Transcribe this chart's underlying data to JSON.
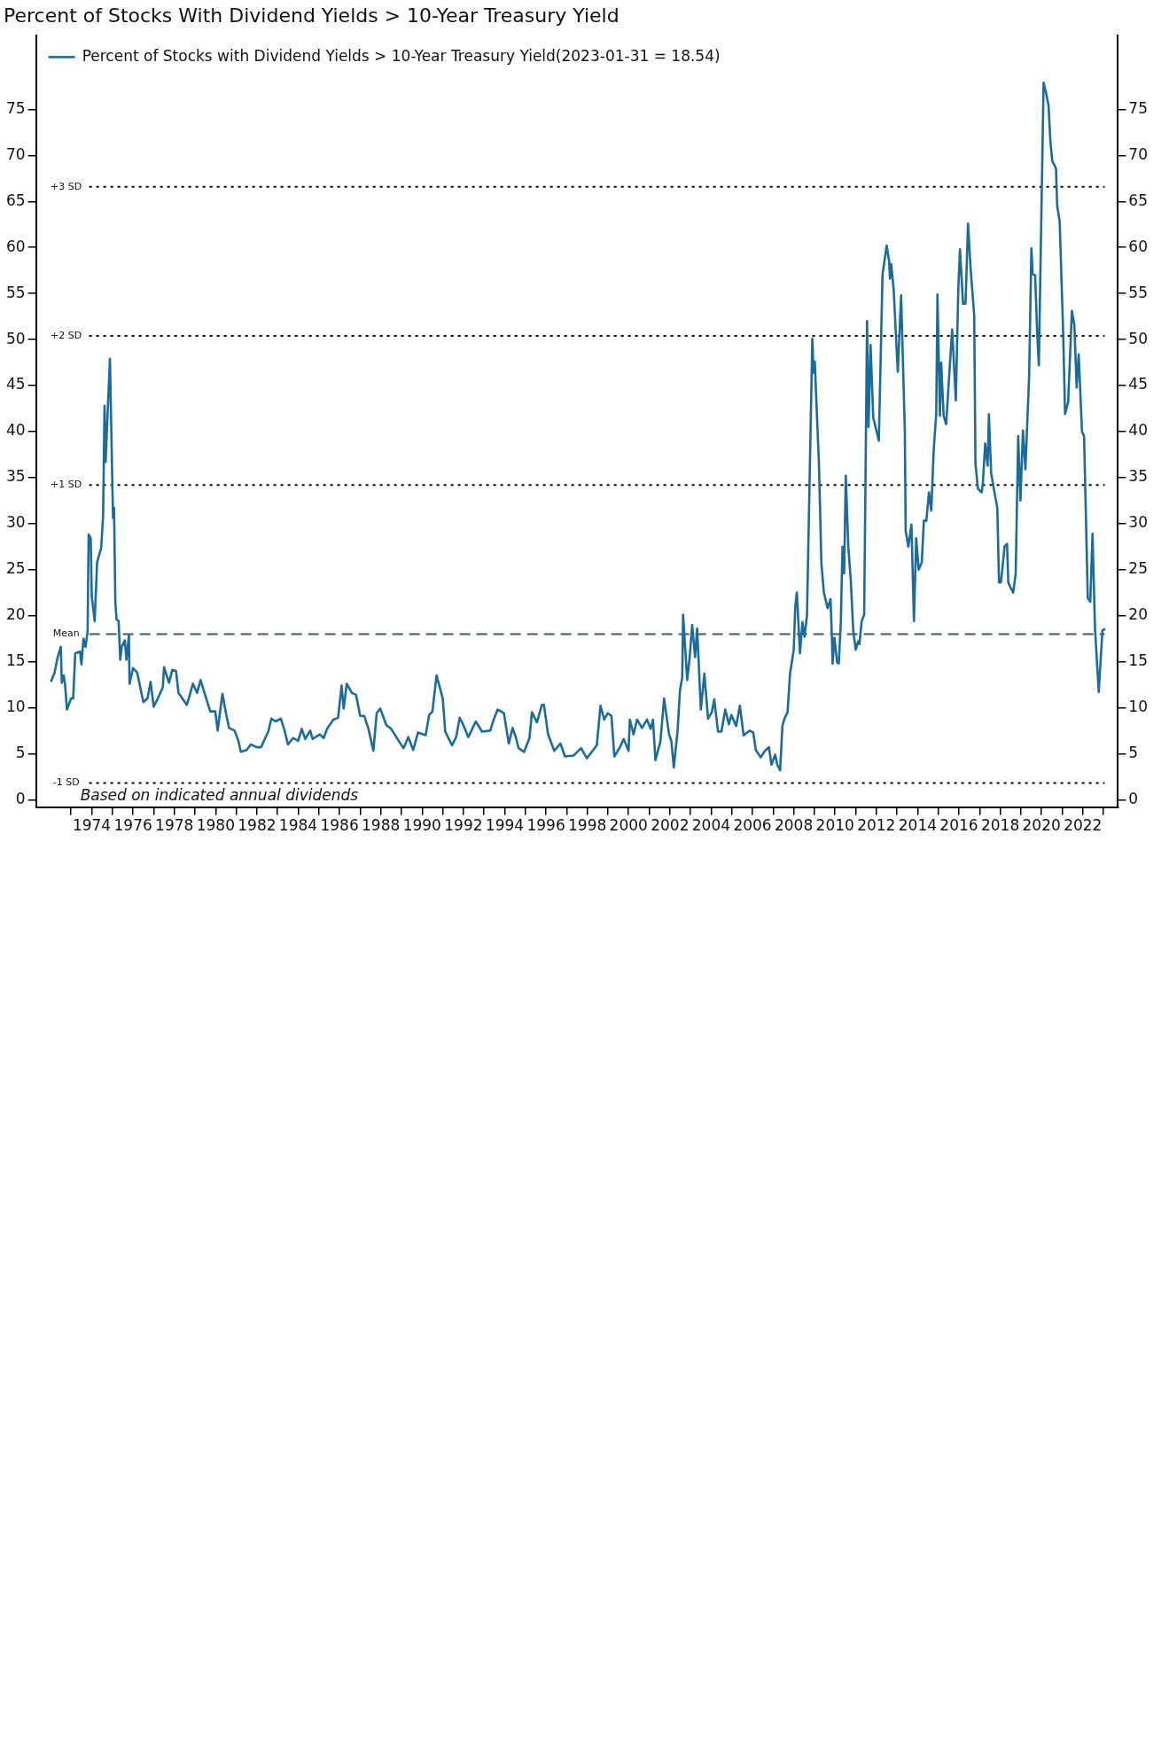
{
  "chart_data": {
    "type": "line",
    "title": "Percent of Stocks With Dividend Yields > 10-Year Treasury Yield",
    "x": [
      1972.02,
      1972.2,
      1972.34,
      1972.5,
      1972.55,
      1972.64,
      1972.7,
      1972.8,
      1973.0,
      1973.1,
      1973.2,
      1973.43,
      1973.5,
      1973.6,
      1973.7,
      1973.8,
      1973.85,
      1973.95,
      1974.0,
      1974.14,
      1974.26,
      1974.46,
      1974.55,
      1974.62,
      1974.67,
      1974.88,
      1975.03,
      1975.08,
      1975.14,
      1975.2,
      1975.3,
      1975.38,
      1975.45,
      1975.6,
      1975.68,
      1975.8,
      1975.83,
      1976.0,
      1976.2,
      1976.5,
      1976.7,
      1976.85,
      1977.0,
      1977.2,
      1977.44,
      1977.5,
      1977.74,
      1977.9,
      1978.08,
      1978.2,
      1978.6,
      1978.7,
      1978.9,
      1979.1,
      1979.27,
      1979.57,
      1979.74,
      1979.98,
      1980.1,
      1980.2,
      1980.33,
      1980.5,
      1980.65,
      1980.92,
      1981.1,
      1981.22,
      1981.5,
      1981.7,
      1982.0,
      1982.2,
      1982.4,
      1982.55,
      1982.7,
      1982.9,
      1983.16,
      1983.34,
      1983.5,
      1983.75,
      1984.0,
      1984.17,
      1984.34,
      1984.58,
      1984.7,
      1985.05,
      1985.23,
      1985.4,
      1985.7,
      1985.93,
      1986.1,
      1986.2,
      1986.35,
      1986.6,
      1986.8,
      1987.0,
      1987.2,
      1987.4,
      1987.64,
      1987.8,
      1987.97,
      1988.27,
      1988.5,
      1988.75,
      1989.1,
      1989.33,
      1989.57,
      1989.8,
      1990.17,
      1990.34,
      1990.5,
      1990.7,
      1991.0,
      1991.12,
      1991.45,
      1991.65,
      1991.82,
      1992.0,
      1992.24,
      1992.6,
      1992.9,
      1993.3,
      1993.48,
      1993.66,
      1993.96,
      1994.2,
      1994.38,
      1994.55,
      1994.67,
      1994.94,
      1995.2,
      1995.32,
      1995.56,
      1995.8,
      1995.9,
      1996.1,
      1996.4,
      1996.7,
      1996.92,
      1997.34,
      1997.7,
      1997.98,
      1998.22,
      1998.46,
      1998.64,
      1998.82,
      1998.99,
      1999.17,
      1999.31,
      1999.58,
      1999.76,
      2000.0,
      2000.06,
      2000.24,
      2000.41,
      2000.65,
      2000.89,
      2001.07,
      2001.18,
      2001.3,
      2001.54,
      2001.72,
      2001.96,
      2002.07,
      2002.19,
      2002.37,
      2002.49,
      2002.6,
      2002.64,
      2002.84,
      2002.96,
      2003.08,
      2003.22,
      2003.32,
      2003.5,
      2003.67,
      2003.85,
      2004.03,
      2004.15,
      2004.33,
      2004.5,
      2004.68,
      2004.86,
      2004.98,
      2005.21,
      2005.39,
      2005.57,
      2005.86,
      2006.04,
      2006.16,
      2006.4,
      2006.6,
      2006.8,
      2006.92,
      2007.1,
      2007.2,
      2007.34,
      2007.45,
      2007.55,
      2007.7,
      2007.82,
      2008.0,
      2008.07,
      2008.15,
      2008.3,
      2008.42,
      2008.52,
      2008.64,
      2008.9,
      2008.96,
      2009.02,
      2009.08,
      2009.22,
      2009.34,
      2009.46,
      2009.64,
      2009.78,
      2009.85,
      2009.88,
      2009.97,
      2010.1,
      2010.18,
      2010.28,
      2010.36,
      2010.44,
      2010.52,
      2010.64,
      2010.76,
      2010.88,
      2011.0,
      2011.12,
      2011.18,
      2011.29,
      2011.41,
      2011.55,
      2011.62,
      2011.72,
      2011.85,
      2012.12,
      2012.3,
      2012.5,
      2012.62,
      2012.66,
      2012.72,
      2012.84,
      2012.98,
      2013.04,
      2013.2,
      2013.38,
      2013.42,
      2013.55,
      2013.7,
      2013.82,
      2013.93,
      2014.05,
      2014.2,
      2014.3,
      2014.42,
      2014.55,
      2014.66,
      2014.78,
      2014.9,
      2014.96,
      2015.08,
      2015.14,
      2015.26,
      2015.38,
      2015.67,
      2015.85,
      2015.97,
      2016.05,
      2016.2,
      2016.32,
      2016.44,
      2016.56,
      2016.74,
      2016.8,
      2016.92,
      2017.1,
      2017.16,
      2017.27,
      2017.39,
      2017.45,
      2017.56,
      2017.68,
      2017.86,
      2017.94,
      2018.03,
      2018.1,
      2018.21,
      2018.33,
      2018.39,
      2018.51,
      2018.63,
      2018.75,
      2018.87,
      2018.98,
      2019.1,
      2019.22,
      2019.4,
      2019.51,
      2019.57,
      2019.69,
      2019.79,
      2019.87,
      2020.1,
      2020.22,
      2020.34,
      2020.43,
      2020.52,
      2020.7,
      2020.76,
      2020.88,
      2021.05,
      2021.14,
      2021.29,
      2021.47,
      2021.59,
      2021.7,
      2021.8,
      2021.96,
      2022.06,
      2022.24,
      2022.36,
      2022.47,
      2022.59,
      2022.77,
      2022.95,
      2023.08
    ],
    "series": [
      {
        "name": "Percent of Stocks with Dividend Yields > 10-Year Treasury Yield(2023-01-31 = 18.54)",
        "color": "#1b6b9b",
        "values": [
          12.8,
          13.8,
          15.4,
          16.6,
          12.7,
          13.5,
          12.7,
          9.8,
          11.0,
          11.0,
          15.9,
          16.1,
          14.7,
          17.5,
          16.6,
          18.3,
          28.8,
          28.4,
          22.1,
          19.4,
          25.8,
          27.4,
          30.9,
          42.8,
          36.7,
          47.9,
          30.6,
          31.7,
          21.6,
          19.6,
          19.4,
          15.2,
          16.6,
          17.3,
          15.2,
          17.9,
          12.6,
          14.3,
          13.8,
          10.6,
          11.0,
          12.8,
          10.1,
          11.0,
          12.2,
          14.4,
          12.7,
          14.1,
          14.0,
          11.6,
          10.3,
          11.0,
          12.6,
          11.6,
          13.0,
          10.8,
          9.6,
          9.6,
          7.5,
          9.3,
          11.5,
          9.4,
          7.8,
          7.5,
          6.4,
          5.2,
          5.4,
          6.0,
          5.7,
          5.7,
          6.7,
          7.4,
          8.8,
          8.5,
          8.8,
          7.5,
          6.0,
          6.7,
          6.4,
          7.7,
          6.6,
          7.5,
          6.6,
          7.1,
          6.7,
          7.7,
          8.7,
          8.9,
          12.4,
          9.9,
          12.6,
          11.6,
          11.4,
          9.1,
          9.1,
          7.7,
          5.3,
          9.4,
          9.9,
          8.1,
          7.7,
          6.8,
          5.6,
          6.8,
          5.4,
          7.3,
          7.0,
          9.2,
          9.6,
          13.5,
          11.0,
          7.4,
          5.9,
          6.8,
          8.9,
          8.1,
          6.8,
          8.5,
          7.4,
          7.5,
          8.8,
          9.8,
          9.4,
          6.1,
          7.8,
          6.7,
          5.6,
          5.2,
          6.7,
          9.5,
          8.4,
          10.3,
          10.3,
          7.1,
          5.3,
          6.1,
          4.7,
          4.8,
          5.6,
          4.5,
          5.2,
          5.9,
          10.2,
          8.7,
          9.4,
          9.1,
          4.7,
          5.7,
          6.6,
          5.3,
          8.7,
          7.1,
          8.7,
          7.8,
          8.7,
          7.7,
          8.7,
          4.3,
          6.3,
          11.0,
          7.1,
          6.4,
          3.5,
          7.4,
          11.9,
          13.3,
          20.1,
          13.0,
          15.5,
          19.0,
          15.5,
          18.6,
          9.8,
          13.7,
          8.8,
          9.5,
          10.9,
          7.4,
          7.4,
          9.8,
          8.2,
          9.2,
          8.0,
          10.2,
          7.0,
          7.5,
          7.3,
          5.4,
          4.6,
          5.3,
          5.7,
          3.8,
          4.9,
          3.8,
          3.2,
          8.0,
          8.8,
          9.5,
          13.7,
          16.3,
          20.9,
          22.5,
          15.9,
          19.3,
          17.7,
          20.0,
          50.1,
          46.4,
          47.6,
          44.1,
          36.5,
          25.6,
          22.5,
          20.8,
          21.8,
          17.5,
          14.8,
          17.6,
          14.9,
          14.8,
          19.3,
          27.5,
          24.6,
          35.2,
          27.5,
          23.9,
          18.4,
          16.3,
          17.2,
          16.9,
          19.4,
          20.1,
          52.0,
          40.5,
          49.4,
          41.5,
          39.0,
          57.1,
          60.2,
          58.5,
          56.6,
          58.2,
          55.4,
          49.0,
          46.5,
          54.8,
          40.1,
          29.2,
          27.5,
          29.9,
          19.4,
          28.4,
          25.0,
          25.8,
          30.3,
          30.3,
          33.4,
          31.4,
          38.1,
          41.9,
          54.9,
          41.7,
          47.5,
          41.7,
          40.8,
          51.1,
          43.4,
          55.6,
          59.8,
          53.9,
          53.9,
          62.6,
          57.9,
          52.6,
          36.5,
          33.8,
          33.4,
          34.4,
          38.7,
          36.3,
          41.9,
          35.5,
          33.9,
          31.7,
          23.6,
          23.6,
          25.0,
          27.5,
          27.8,
          23.6,
          23.0,
          22.5,
          24.6,
          39.5,
          32.5,
          40.1,
          35.9,
          46.1,
          59.9,
          57.1,
          57.0,
          50.6,
          47.2,
          77.9,
          76.8,
          75.4,
          71.5,
          69.4,
          68.6,
          64.5,
          62.8,
          50.6,
          41.9,
          43.2,
          53.1,
          51.6,
          44.8,
          48.4,
          40.0,
          39.5,
          21.9,
          21.5,
          28.9,
          18.6,
          11.7,
          18.4,
          18.54
        ]
      }
    ],
    "xlim": [
      1971.3,
      2023.7
    ],
    "xticks": [
      {
        "value": 1973,
        "label": null
      },
      1974,
      {
        "value": 1975,
        "label": null
      },
      1976,
      {
        "value": 1977,
        "label": null
      },
      1978,
      {
        "value": 1979,
        "label": null
      },
      1980,
      {
        "value": 1981,
        "label": null
      },
      1982,
      {
        "value": 1983,
        "label": null
      },
      1984,
      {
        "value": 1985,
        "label": null
      },
      1986,
      {
        "value": 1987,
        "label": null
      },
      1988,
      {
        "value": 1989,
        "label": null
      },
      1990,
      {
        "value": 1991,
        "label": null
      },
      1992,
      {
        "value": 1993,
        "label": null
      },
      1994,
      {
        "value": 1995,
        "label": null
      },
      1996,
      {
        "value": 1997,
        "label": null
      },
      1998,
      {
        "value": 1999,
        "label": null
      },
      2000,
      {
        "value": 2001,
        "label": null
      },
      2002,
      {
        "value": 2003,
        "label": null
      },
      2004,
      {
        "value": 2005,
        "label": null
      },
      2006,
      {
        "value": 2007,
        "label": null
      },
      2008,
      {
        "value": 2009,
        "label": null
      },
      2010,
      {
        "value": 2011,
        "label": null
      },
      2012,
      {
        "value": 2013,
        "label": null
      },
      2014,
      {
        "value": 2015,
        "label": null
      },
      2016,
      {
        "value": 2017,
        "label": null
      },
      2018,
      {
        "value": 2019,
        "label": null
      },
      2020,
      {
        "value": 2021,
        "label": null
      },
      2022,
      {
        "value": 2023,
        "label": null
      }
    ],
    "ylim": [
      -0.8,
      83
    ],
    "yticks": [
      0,
      5,
      10,
      15,
      20,
      25,
      30,
      35,
      40,
      45,
      50,
      55,
      60,
      65,
      70,
      75
    ],
    "y2lim": [
      -0.8,
      83
    ],
    "y2ticks": [
      0,
      5,
      10,
      15,
      20,
      25,
      30,
      35,
      40,
      45,
      50,
      55,
      60,
      65,
      70,
      75
    ],
    "ref_lines": [
      {
        "axis": "y",
        "value": 66.6,
        "label": "+3 SD",
        "color": "#000000",
        "line_style": "dotted"
      },
      {
        "axis": "y",
        "value": 50.4,
        "label": "+2 SD",
        "color": "#000000",
        "line_style": "dotted"
      },
      {
        "axis": "y",
        "value": 34.2,
        "label": "+1 SD",
        "color": "#000000",
        "line_style": "dotted"
      },
      {
        "axis": "y",
        "value": 18.0,
        "label": "Mean",
        "color": "#3d5a6c",
        "line_style": "dashed"
      },
      {
        "axis": "y",
        "value": 1.8,
        "label": "-1 SD",
        "color": "#000000",
        "line_style": "dotted"
      }
    ],
    "annotations": [
      "Based on indicated annual dividends"
    ],
    "legend": "top left",
    "line_style": "solid"
  }
}
